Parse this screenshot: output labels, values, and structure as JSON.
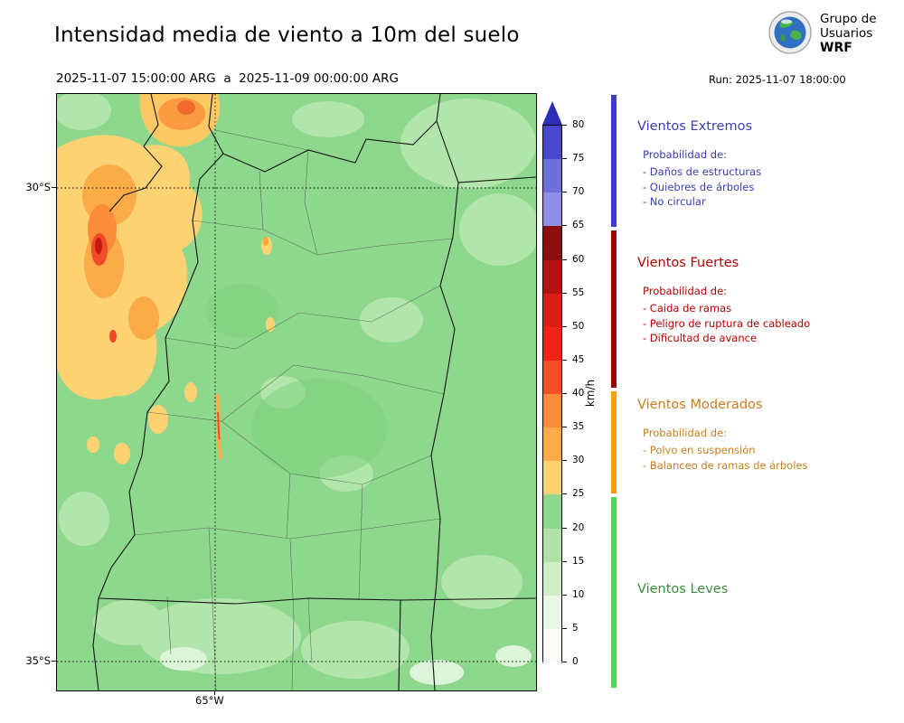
{
  "header": {
    "title": "Intensidad media de viento a 10m del suelo",
    "valid_range": "2025-11-07 15:00:00 ARG  a  2025-11-09 00:00:00 ARG",
    "run_label": "Run: 2025-11-07 18:00:00",
    "logo": {
      "line1": "Grupo de",
      "line2": "Usuarios",
      "line3": "WRF"
    }
  },
  "map": {
    "lat_ticks": {
      "t30": "30°S",
      "t35": "35°S"
    },
    "lon_ticks": {
      "t65": "65°W"
    },
    "base_color": "#8dd88d"
  },
  "colorbar": {
    "unit_label": "km/h",
    "ticks": [
      80,
      75,
      70,
      65,
      60,
      55,
      50,
      45,
      40,
      35,
      30,
      25,
      20,
      15,
      10,
      5,
      0
    ],
    "segments_bottom_to_top": [
      "#f9fcf7",
      "#e9f7e4",
      "#cfeec8",
      "#b0e2a6",
      "#8ed88c",
      "#fdd272",
      "#fcab49",
      "#fb8d3a",
      "#f4502a",
      "#ee2417",
      "#d81e14",
      "#b01310",
      "#8c0d0b",
      "#8f8fe8",
      "#6f6fd9",
      "#4848cb"
    ],
    "over_color": "#2d2db4",
    "under_color": "#ffffff",
    "value_min": 0,
    "value_max": 80
  },
  "category_thresholds_kmh": [
    0,
    25,
    40,
    65
  ],
  "legend": {
    "sections": [
      {
        "title": "Vientos Extremos",
        "color": "#3c3cb4",
        "bar_color": "#3c3cc8",
        "prob_label": "Probabilidad de:",
        "items": [
          "- Daños de estructuras",
          "- Quiebres de árboles",
          "- No circular"
        ]
      },
      {
        "title": "Vientos Fuertes",
        "color": "#b40000",
        "bar_color": "#9c0000",
        "prob_label": "Probabilidad de:",
        "items": [
          "- Caida de ramas",
          "- Peligro de ruptura de cableado",
          "- Dificultad de avance"
        ]
      },
      {
        "title": "Vientos Moderados",
        "color": "#c87d1e",
        "bar_color": "#ff9d0a",
        "prob_label": "Probabilidad de:",
        "items": [
          "- Polvo en suspensión",
          "- Balanceo de ramas de árboles"
        ]
      },
      {
        "title": "Vientos Leves",
        "color": "#3c8c3c",
        "bar_color": "#55d455",
        "prob_label": "",
        "items": []
      }
    ]
  }
}
